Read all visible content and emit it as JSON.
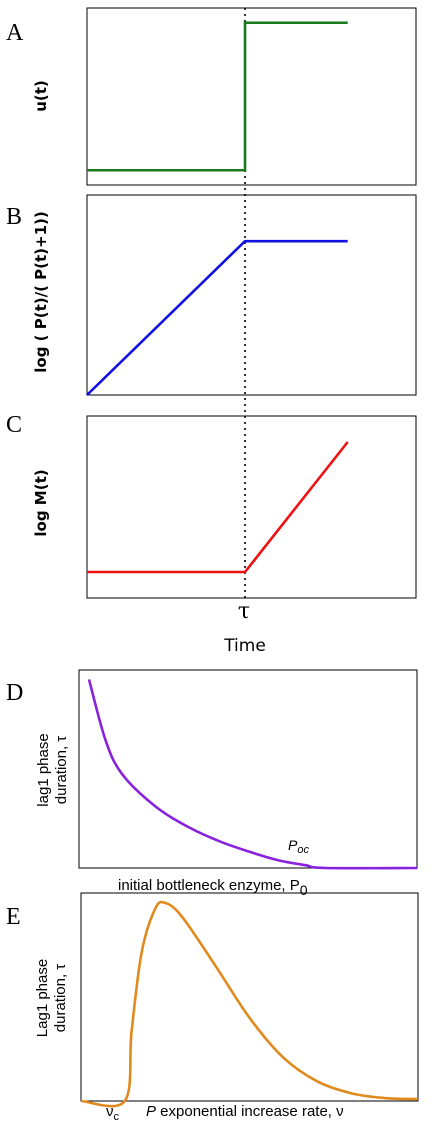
{
  "panels": {
    "A": {
      "letter": "A",
      "ylabel": "u(t)"
    },
    "B": {
      "letter": "B",
      "ylabel": "log ( P(t)/( P(t)+1))"
    },
    "C": {
      "letter": "C",
      "ylabel": "log M(t)"
    },
    "D": {
      "letter": "D",
      "ylabel_line1": "lag1 phase",
      "ylabel_line2": "duration, τ",
      "xlabel": "initial bottleneck enzyme, P",
      "xlabel_sub": "0",
      "annotation": "P",
      "annotation_sub": "oc"
    },
    "E": {
      "letter": "E",
      "ylabel_line1": "Lag1 phase",
      "ylabel_line2": "duration, τ",
      "xtick": "ν",
      "xtick_sub": "c",
      "xlabel_italic": "P",
      "xlabel": " exponential  increase rate, ν"
    }
  },
  "shared": {
    "tau_label": "τ",
    "xlabel": "Time"
  },
  "colors": {
    "A": "#1a7a1a",
    "B": "#1010e0",
    "C": "#ee1111",
    "D": "#8822dd",
    "E": "#e08a1e"
  },
  "chart_data": [
    {
      "panel": "A",
      "type": "line",
      "series": [
        {
          "x": [
            0,
            1,
            1,
            1.65
          ],
          "y": [
            0,
            0,
            1,
            1
          ]
        }
      ],
      "xlim": [
        0,
        2
      ],
      "ylim": [
        -0.1,
        1.1
      ]
    },
    {
      "panel": "B",
      "type": "line",
      "series": [
        {
          "x": [
            0,
            1,
            1.65
          ],
          "y": [
            0,
            1,
            1
          ]
        }
      ],
      "xlim": [
        0,
        2
      ],
      "ylim": [
        0,
        1.3
      ]
    },
    {
      "panel": "C",
      "type": "line",
      "series": [
        {
          "x": [
            0,
            1,
            1.65
          ],
          "y": [
            0,
            0,
            1
          ]
        }
      ],
      "xlim": [
        0,
        2
      ],
      "ylim": [
        -0.2,
        1.2
      ]
    },
    {
      "panel": "D",
      "type": "line",
      "series": [
        {
          "x": [
            0,
            0.05,
            0.1,
            0.2,
            0.3,
            0.4,
            0.5,
            0.58,
            0.66,
            0.72,
            1.0
          ],
          "y": [
            1.0,
            0.68,
            0.5,
            0.33,
            0.22,
            0.14,
            0.08,
            0.04,
            0.015,
            0.0,
            0.0
          ]
        }
      ],
      "xlim": [
        0,
        1
      ],
      "ylim": [
        0,
        1.05
      ]
    },
    {
      "panel": "E",
      "type": "line",
      "series": [
        {
          "x": [
            0,
            0.13,
            0.15,
            0.18,
            0.22,
            0.25,
            0.3,
            0.4,
            0.5,
            0.6,
            0.7,
            0.8,
            0.9,
            1.0
          ],
          "y": [
            0,
            0,
            0.35,
            0.75,
            0.97,
            1.0,
            0.93,
            0.68,
            0.42,
            0.22,
            0.1,
            0.04,
            0.015,
            0.01
          ]
        }
      ],
      "xlim": [
        0,
        1
      ],
      "ylim": [
        0,
        1.05
      ]
    }
  ]
}
